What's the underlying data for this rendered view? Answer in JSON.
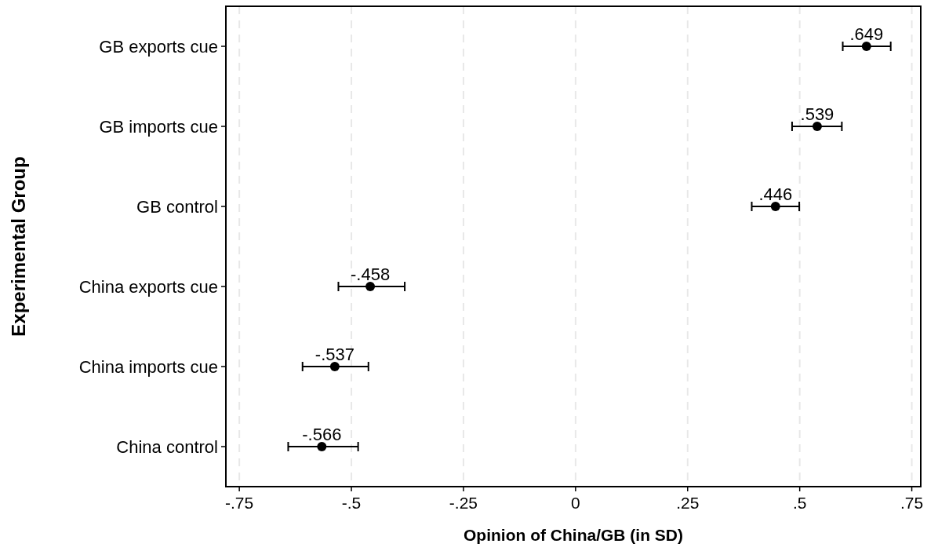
{
  "chart_data": {
    "type": "scatter",
    "orientation": "horizontal",
    "xlabel": "Opinion of China/GB (in SD)",
    "ylabel": "Experimental Group",
    "categories": [
      "GB exports cue",
      "GB imports cue",
      "GB control",
      "China exports cue",
      "China imports cue",
      "China control"
    ],
    "values": [
      0.649,
      0.539,
      0.446,
      -0.458,
      -0.537,
      -0.566
    ],
    "errors": [
      [
        0.596,
        0.703
      ],
      [
        0.483,
        0.594
      ],
      [
        0.393,
        0.499
      ],
      [
        -0.529,
        -0.381
      ],
      [
        -0.609,
        -0.462
      ],
      [
        -0.641,
        -0.485
      ]
    ],
    "value_labels": [
      ".649",
      ".539",
      ".446",
      "-.458",
      "-.537",
      "-.566"
    ],
    "color": "#000000",
    "marker": "circle",
    "grid": "x",
    "xlim": [
      -0.78,
      0.77
    ],
    "xticks": [
      {
        "value": -0.75,
        "label": "-.75"
      },
      {
        "value": -0.5,
        "label": "-.5"
      },
      {
        "value": -0.25,
        "label": "-.25"
      },
      0,
      {
        "value": 0.25,
        "label": ".25"
      },
      {
        "value": 0.5,
        "label": ".5"
      },
      {
        "value": 0.75,
        "label": ".75"
      }
    ]
  }
}
